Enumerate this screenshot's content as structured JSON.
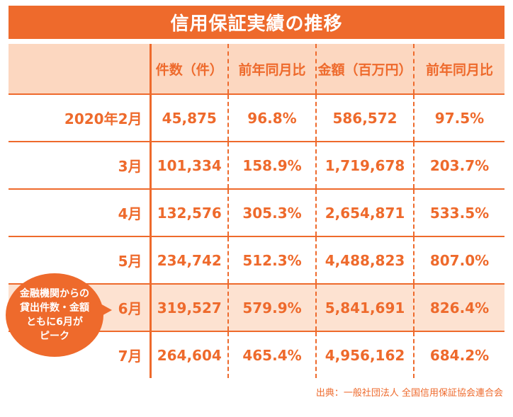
{
  "title": "信用保証実績の推移",
  "table": {
    "headers": [
      "",
      "件数（件）",
      "前年同月比",
      "金額（百万円）",
      "前年同月比"
    ],
    "rows": [
      [
        "2020年2月",
        "45,875",
        "96.8%",
        "586,572",
        "97.5%"
      ],
      [
        "3月",
        "101,334",
        "158.9%",
        "1,719,678",
        "203.7%"
      ],
      [
        "4月",
        "132,576",
        "305.3%",
        "2,654,871",
        "533.5%"
      ],
      [
        "5月",
        "234,742",
        "512.3%",
        "4,488,823",
        "807.0%"
      ],
      [
        "6月",
        "319,527",
        "579.9%",
        "5,841,691",
        "826.4%"
      ],
      [
        "7月",
        "264,604",
        "465.4%",
        "4,956,162",
        "684.2%"
      ]
    ]
  },
  "callout": {
    "lines": [
      "金融機関からの",
      "貸出件数・金額",
      "ともに6月が",
      "ピーク"
    ]
  },
  "source": "出典：一般社団法人 全国信用保証協会連合会",
  "colors": {
    "accent": "#ee6a2c",
    "header_bg": "#fcd7c0",
    "highlight_bg": "#fde2d1"
  }
}
